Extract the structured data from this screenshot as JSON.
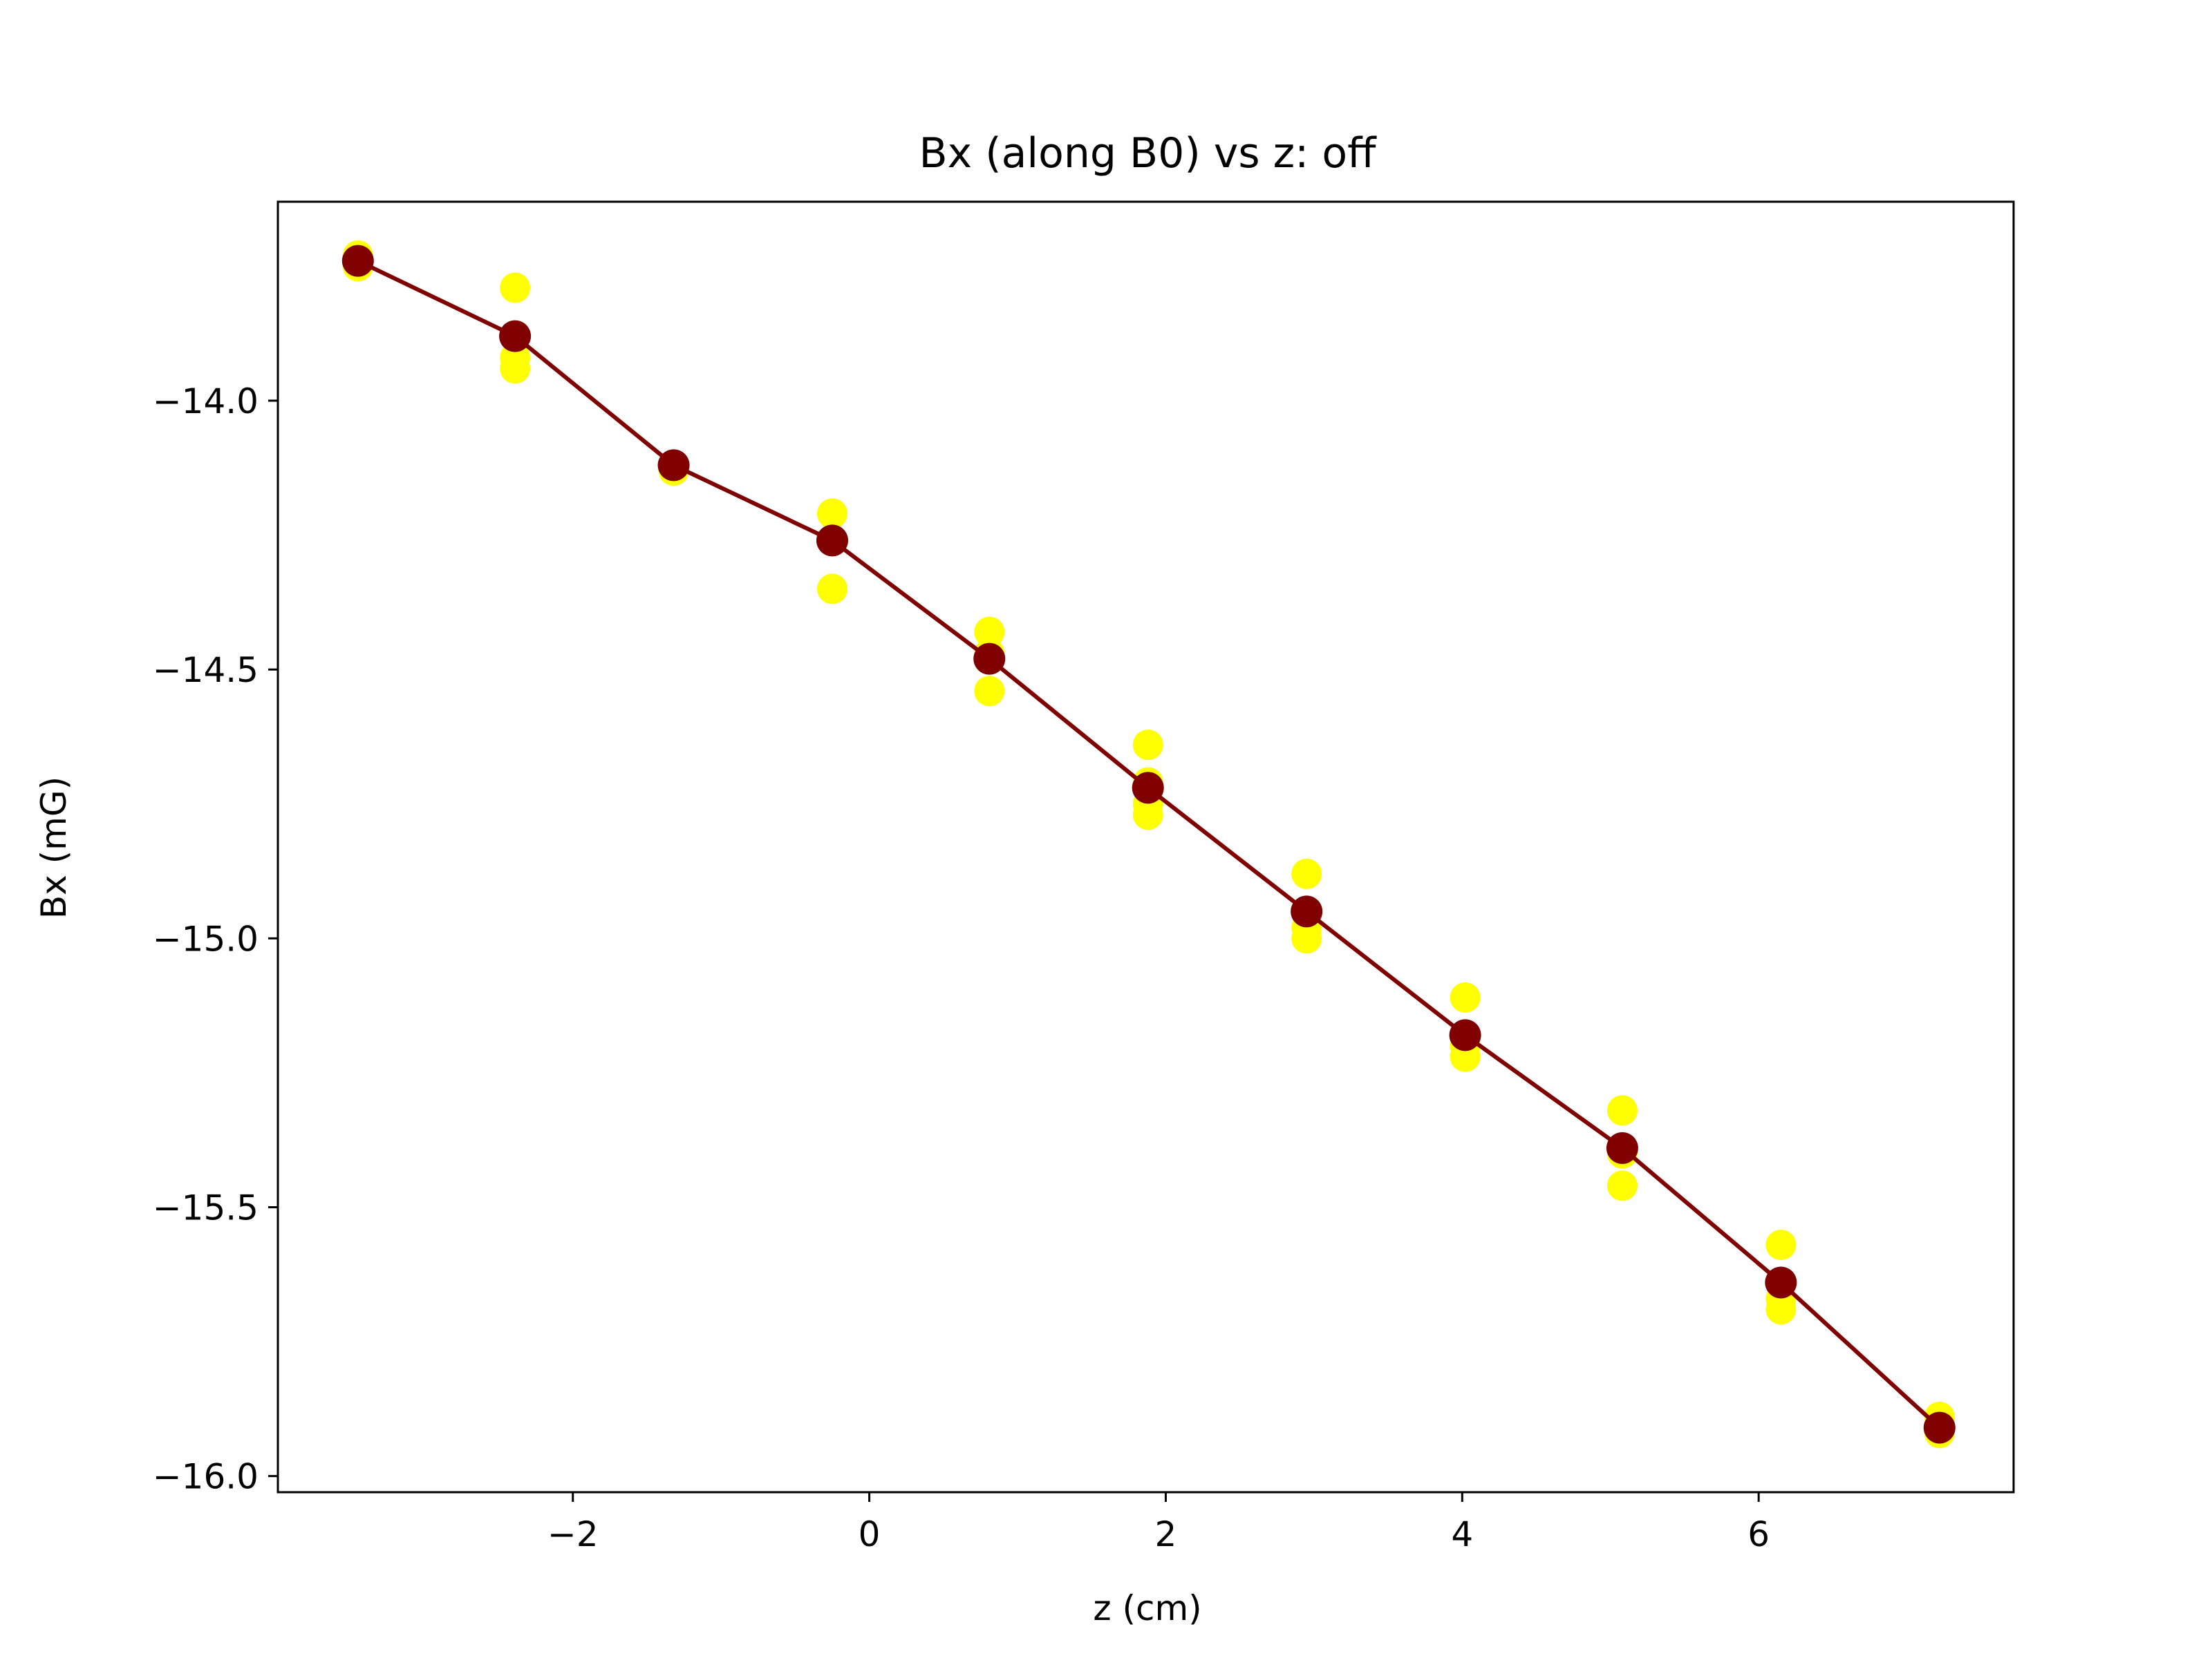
{
  "chart_data": {
    "type": "line",
    "title": "Bx (along B0) vs z: off",
    "xlabel": "z (cm)",
    "ylabel": "Bx (mG)",
    "xlim": [
      -3.99,
      7.72
    ],
    "ylim": [
      -16.03,
      -13.63
    ],
    "x_ticks": [
      -2,
      0,
      2,
      4,
      6
    ],
    "x_tick_labels": [
      "−2",
      "0",
      "2",
      "4",
      "6"
    ],
    "y_ticks": [
      -14.0,
      -14.5,
      -15.0,
      -15.5,
      -16.0
    ],
    "y_tick_labels": [
      "−14.0",
      "−14.5",
      "−15.0",
      "−15.5",
      "−16.0"
    ],
    "grid": false,
    "colors": {
      "raw": "#ffff00",
      "mean": "#800000"
    },
    "series": [
      {
        "kind": "scatter",
        "x": [
          -3.45,
          -3.45,
          -3.45,
          -2.39,
          -2.39,
          -2.39,
          -2.39,
          -1.32,
          -1.32,
          -0.25,
          -0.25,
          -0.25,
          0.81,
          0.81,
          0.81,
          0.81,
          1.88,
          1.88,
          1.88,
          1.88,
          2.95,
          2.95,
          2.95,
          2.95,
          4.02,
          4.02,
          4.02,
          4.02,
          5.08,
          5.08,
          5.08,
          5.08,
          6.15,
          6.15,
          6.15,
          6.15,
          7.22,
          7.22,
          7.22
        ],
        "y": [
          -13.73,
          -13.75,
          -13.74,
          -13.79,
          -13.92,
          -13.94,
          -13.88,
          -14.12,
          -14.13,
          -14.21,
          -14.35,
          -14.26,
          -14.43,
          -14.54,
          -14.47,
          -14.48,
          -14.64,
          -14.75,
          -14.77,
          -14.71,
          -14.88,
          -14.98,
          -15.0,
          -14.95,
          -15.11,
          -15.2,
          -15.22,
          -15.18,
          -15.32,
          -15.46,
          -15.39,
          -15.4,
          -15.57,
          -15.69,
          -15.67,
          -15.64,
          -15.89,
          -15.92,
          -15.91
        ]
      },
      {
        "kind": "line",
        "x": [
          -3.45,
          -2.39,
          -1.32,
          -0.25,
          0.81,
          1.88,
          2.95,
          4.02,
          5.08,
          6.15,
          7.22
        ],
        "y": [
          -13.74,
          -13.88,
          -14.12,
          -14.26,
          -14.48,
          -14.72,
          -14.95,
          -15.18,
          -15.39,
          -15.64,
          -15.91
        ]
      }
    ]
  }
}
